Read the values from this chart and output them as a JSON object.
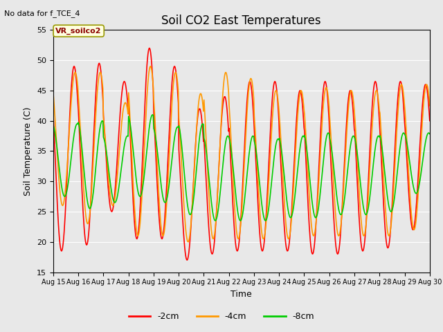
{
  "title": "Soil CO2 East Temperatures",
  "top_left_text": "No data for f_TCE_4",
  "annotation_box_text": "VR_soilco2",
  "xlabel": "Time",
  "ylabel": "Soil Temperature (C)",
  "ylim": [
    15,
    55
  ],
  "xlim_days": [
    15,
    30
  ],
  "x_ticks": [
    15,
    16,
    17,
    18,
    19,
    20,
    21,
    22,
    23,
    24,
    25,
    26,
    27,
    28,
    29,
    30
  ],
  "x_tick_labels": [
    "Aug 15",
    "Aug 16",
    "Aug 17",
    "Aug 18",
    "Aug 19",
    "Aug 20",
    "Aug 21",
    "Aug 22",
    "Aug 23",
    "Aug 24",
    "Aug 25",
    "Aug 26",
    "Aug 27",
    "Aug 28",
    "Aug 29",
    "Aug 30"
  ],
  "y_ticks": [
    15,
    20,
    25,
    30,
    35,
    40,
    45,
    50,
    55
  ],
  "legend_labels": [
    "-2cm",
    "-4cm",
    "-8cm"
  ],
  "legend_colors": [
    "#ff0000",
    "#ff9900",
    "#00cc00"
  ],
  "bg_color": "#e8e8e8",
  "fig_bg_color": "#e8e8e8",
  "grid_color": "#ffffff",
  "peaks_2cm": [
    49,
    49.5,
    46.5,
    52,
    49,
    42,
    44,
    46.5,
    46.5,
    45,
    46.5,
    45,
    46.5,
    46.5,
    46
  ],
  "troughs_2cm": [
    18.5,
    19.5,
    25,
    20.5,
    20.5,
    17,
    18,
    18.5,
    18.5,
    18.5,
    18,
    18,
    18.5,
    19,
    22
  ],
  "peaks_4cm": [
    48,
    48,
    43,
    49,
    48,
    44.5,
    48,
    47,
    45,
    45,
    45.5,
    45,
    45,
    46,
    46
  ],
  "troughs_4cm": [
    26,
    23,
    26,
    21,
    21,
    20,
    20.5,
    20.5,
    20.5,
    20.5,
    21,
    21,
    21,
    21,
    22
  ],
  "peaks_8cm": [
    39.5,
    40,
    37.5,
    41,
    39,
    39.5,
    37.5,
    37.5,
    37,
    37.5,
    38,
    37.5,
    37.5,
    38,
    38
  ],
  "troughs_8cm": [
    27.5,
    25.5,
    26.5,
    27.5,
    26.5,
    24.5,
    23.5,
    23.5,
    23.5,
    24,
    24,
    24.5,
    24.5,
    25,
    28
  ],
  "phase_2cm": 14,
  "phase_4cm": 15,
  "phase_8cm": 17,
  "n_days_plot": 15
}
